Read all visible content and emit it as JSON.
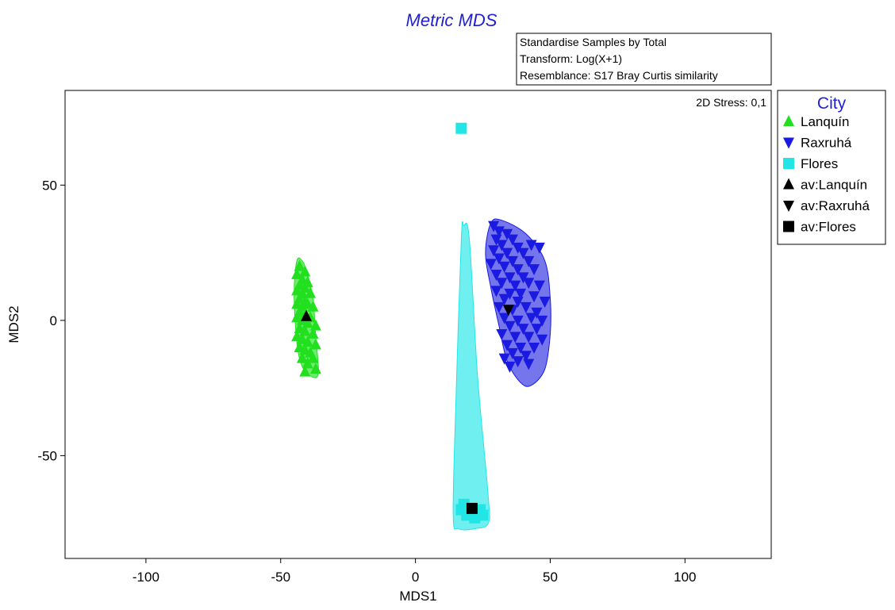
{
  "chart_data": {
    "type": "scatter",
    "title": "Metric MDS",
    "annotation_box": [
      "Standardise Samples by Total",
      "Transform: Log(X+1)",
      "Resemblance: S17 Bray Curtis similarity"
    ],
    "stress_label": "2D Stress: 0,1",
    "xlabel": "MDS1",
    "ylabel": "MDS2",
    "xlim": [
      -130,
      132
    ],
    "ylim": [
      -88,
      85
    ],
    "xticks": [
      -100,
      -50,
      0,
      50,
      100
    ],
    "yticks": [
      -50,
      0,
      50
    ],
    "grid": false,
    "legend_title": "City",
    "legend_position": "right",
    "colors": {
      "title": "#1f1fd6",
      "green": "#22e01f",
      "blue": "#1a1ae0",
      "cyan": "#22e6e6",
      "black": "#000000"
    },
    "series": [
      {
        "name": "Lanquín",
        "marker": "triangle-up",
        "color": "#22e01f",
        "points": [
          [
            -43,
            20
          ],
          [
            -41,
            18
          ],
          [
            -44,
            17
          ],
          [
            -42,
            15
          ],
          [
            -40,
            14
          ],
          [
            -43,
            13
          ],
          [
            -41,
            12
          ],
          [
            -44,
            11
          ],
          [
            -42,
            10
          ],
          [
            -39,
            10
          ],
          [
            -43,
            8
          ],
          [
            -41,
            7
          ],
          [
            -44,
            6
          ],
          [
            -40,
            6
          ],
          [
            -42,
            5
          ],
          [
            -38,
            5
          ],
          [
            -43,
            3
          ],
          [
            -41,
            2
          ],
          [
            -44,
            1
          ],
          [
            -39,
            1
          ],
          [
            -42,
            0
          ],
          [
            -40,
            -1
          ],
          [
            -37,
            -2
          ],
          [
            -43,
            -3
          ],
          [
            -41,
            -4
          ],
          [
            -38,
            -5
          ],
          [
            -44,
            -6
          ],
          [
            -42,
            -7
          ],
          [
            -40,
            -8
          ],
          [
            -37,
            -9
          ],
          [
            -43,
            -10
          ],
          [
            -41,
            -11
          ],
          [
            -39,
            -12
          ],
          [
            -42,
            -14
          ],
          [
            -38,
            -14
          ],
          [
            -40,
            -16
          ],
          [
            -37,
            -18
          ],
          [
            -41,
            -19
          ]
        ],
        "hull": [
          [
            -44,
            22
          ],
          [
            -42,
            22
          ],
          [
            -40,
            17
          ],
          [
            -38,
            8
          ],
          [
            -37,
            -6
          ],
          [
            -36,
            -19
          ],
          [
            -38,
            -21
          ],
          [
            -42,
            -17
          ],
          [
            -44,
            -8
          ],
          [
            -45,
            10
          ]
        ]
      },
      {
        "name": "Raxruhá",
        "marker": "triangle-down",
        "color": "#1a1ae0",
        "points": [
          [
            29,
            35
          ],
          [
            31,
            33
          ],
          [
            34,
            32
          ],
          [
            30,
            30
          ],
          [
            36,
            30
          ],
          [
            32,
            28
          ],
          [
            38,
            27
          ],
          [
            43,
            28
          ],
          [
            46,
            27
          ],
          [
            29,
            26
          ],
          [
            34,
            25
          ],
          [
            40,
            25
          ],
          [
            31,
            23
          ],
          [
            36,
            22
          ],
          [
            42,
            22
          ],
          [
            28,
            21
          ],
          [
            33,
            20
          ],
          [
            38,
            19
          ],
          [
            44,
            19
          ],
          [
            30,
            17
          ],
          [
            35,
            16
          ],
          [
            40,
            16
          ],
          [
            32,
            14
          ],
          [
            37,
            13
          ],
          [
            42,
            14
          ],
          [
            46,
            13
          ],
          [
            30,
            11
          ],
          [
            35,
            10
          ],
          [
            39,
            10
          ],
          [
            44,
            9
          ],
          [
            33,
            8
          ],
          [
            38,
            7
          ],
          [
            48,
            7
          ],
          [
            31,
            5
          ],
          [
            36,
            4
          ],
          [
            41,
            5
          ],
          [
            45,
            3
          ],
          [
            33,
            1
          ],
          [
            38,
            0
          ],
          [
            43,
            1
          ],
          [
            47,
            0
          ],
          [
            35,
            -2
          ],
          [
            40,
            -3
          ],
          [
            45,
            -3
          ],
          [
            32,
            -5
          ],
          [
            37,
            -6
          ],
          [
            42,
            -6
          ],
          [
            47,
            -7
          ],
          [
            34,
            -9
          ],
          [
            39,
            -10
          ],
          [
            44,
            -10
          ],
          [
            36,
            -12
          ],
          [
            41,
            -13
          ],
          [
            33,
            -14
          ],
          [
            38,
            -15
          ],
          [
            42,
            -16
          ],
          [
            35,
            -17
          ]
        ],
        "hull": [
          [
            28,
            36
          ],
          [
            32,
            37
          ],
          [
            41,
            32
          ],
          [
            48,
            22
          ],
          [
            50,
            8
          ],
          [
            50,
            -5
          ],
          [
            48,
            -18
          ],
          [
            43,
            -24
          ],
          [
            39,
            -23
          ],
          [
            34,
            -15
          ],
          [
            31,
            -2
          ],
          [
            28,
            12
          ],
          [
            26,
            25
          ]
        ]
      },
      {
        "name": "Flores",
        "marker": "square",
        "color": "#22e6e6",
        "points": [
          [
            17,
            71
          ],
          [
            17,
            -70
          ],
          [
            19,
            -72
          ],
          [
            21,
            -71
          ],
          [
            24,
            -70
          ],
          [
            25,
            -72
          ],
          [
            22,
            -73
          ],
          [
            18,
            -68
          ]
        ],
        "hull": [
          [
            18,
            35
          ],
          [
            20,
            30
          ],
          [
            23,
            -20
          ],
          [
            27,
            -65
          ],
          [
            27,
            -75
          ],
          [
            22,
            -77
          ],
          [
            16,
            -77
          ],
          [
            14,
            -72
          ],
          [
            15,
            -30
          ],
          [
            17,
            30
          ]
        ]
      },
      {
        "name": "av:Lanquín",
        "marker": "triangle-up",
        "color": "#000000",
        "points": [
          [
            -40.5,
            1.5
          ]
        ]
      },
      {
        "name": "av:Raxruhá",
        "marker": "triangle-down",
        "color": "#000000",
        "points": [
          [
            34.5,
            4
          ]
        ]
      },
      {
        "name": "av:Flores",
        "marker": "square",
        "color": "#000000",
        "points": [
          [
            21,
            -69.5
          ]
        ]
      }
    ]
  }
}
